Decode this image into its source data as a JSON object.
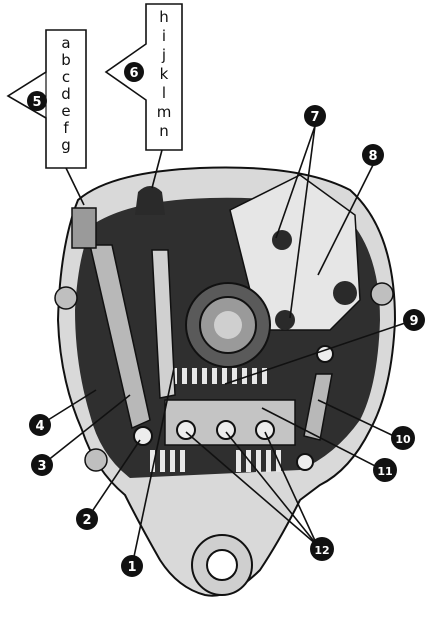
{
  "tags": {
    "left": {
      "number": "5",
      "letters": [
        "a",
        "b",
        "c",
        "d",
        "e",
        "f",
        "g"
      ]
    },
    "right": {
      "number": "6",
      "letters": [
        "h",
        "i",
        "j",
        "k",
        "l",
        "m",
        "n"
      ]
    }
  },
  "callouts": [
    "1",
    "2",
    "3",
    "4",
    "7",
    "8",
    "9",
    "10",
    "11",
    "12"
  ]
}
